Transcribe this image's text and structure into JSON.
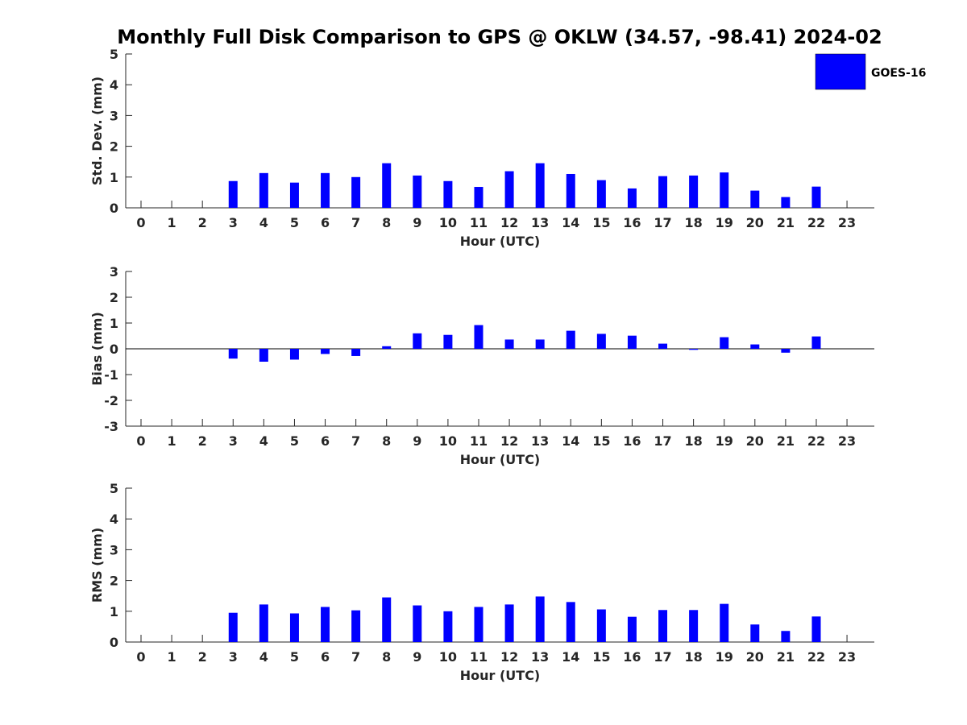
{
  "title": "Monthly Full Disk Comparison to GPS @ OKLW (34.57, -98.41) 2024-02",
  "legend": {
    "label": "GOES-16",
    "color": "#0000ff"
  },
  "chart_data": [
    {
      "type": "bar",
      "name": "std-dev",
      "ylabel": "Std. Dev. (mm)",
      "xlabel": "Hour (UTC)",
      "ylim": [
        0,
        5
      ],
      "yticks": [
        0,
        1,
        2,
        3,
        4,
        5
      ],
      "categories": [
        "0",
        "1",
        "2",
        "3",
        "4",
        "5",
        "6",
        "7",
        "8",
        "9",
        "10",
        "11",
        "12",
        "13",
        "14",
        "15",
        "16",
        "17",
        "18",
        "19",
        "20",
        "21",
        "22",
        "23"
      ],
      "series": [
        {
          "name": "GOES-16",
          "values": [
            null,
            null,
            null,
            0.87,
            1.13,
            0.82,
            1.13,
            1.0,
            1.45,
            1.05,
            0.87,
            0.68,
            1.19,
            1.45,
            1.1,
            0.9,
            0.63,
            1.03,
            1.05,
            1.15,
            0.56,
            0.35,
            0.69,
            null
          ]
        }
      ]
    },
    {
      "type": "bar",
      "name": "bias",
      "ylabel": "Bias (mm)",
      "xlabel": "Hour (UTC)",
      "ylim": [
        -3,
        3
      ],
      "yticks": [
        -3,
        -2,
        -1,
        0,
        1,
        2,
        3
      ],
      "categories": [
        "0",
        "1",
        "2",
        "3",
        "4",
        "5",
        "6",
        "7",
        "8",
        "9",
        "10",
        "11",
        "12",
        "13",
        "14",
        "15",
        "16",
        "17",
        "18",
        "19",
        "20",
        "21",
        "22",
        "23"
      ],
      "series": [
        {
          "name": "GOES-16",
          "values": [
            null,
            null,
            null,
            -0.38,
            -0.5,
            -0.42,
            -0.2,
            -0.28,
            0.1,
            0.6,
            0.54,
            0.92,
            0.36,
            0.36,
            0.7,
            0.58,
            0.51,
            0.2,
            -0.04,
            0.45,
            0.17,
            -0.15,
            0.48,
            null
          ]
        }
      ]
    },
    {
      "type": "bar",
      "name": "rms",
      "ylabel": "RMS (mm)",
      "xlabel": "Hour (UTC)",
      "ylim": [
        0,
        5
      ],
      "yticks": [
        0,
        1,
        2,
        3,
        4,
        5
      ],
      "categories": [
        "0",
        "1",
        "2",
        "3",
        "4",
        "5",
        "6",
        "7",
        "8",
        "9",
        "10",
        "11",
        "12",
        "13",
        "14",
        "15",
        "16",
        "17",
        "18",
        "19",
        "20",
        "21",
        "22",
        "23"
      ],
      "series": [
        {
          "name": "GOES-16",
          "values": [
            null,
            null,
            null,
            0.95,
            1.22,
            0.93,
            1.14,
            1.03,
            1.45,
            1.19,
            1.0,
            1.14,
            1.22,
            1.48,
            1.3,
            1.06,
            0.82,
            1.04,
            1.04,
            1.24,
            0.57,
            0.36,
            0.83,
            null
          ]
        }
      ]
    }
  ]
}
